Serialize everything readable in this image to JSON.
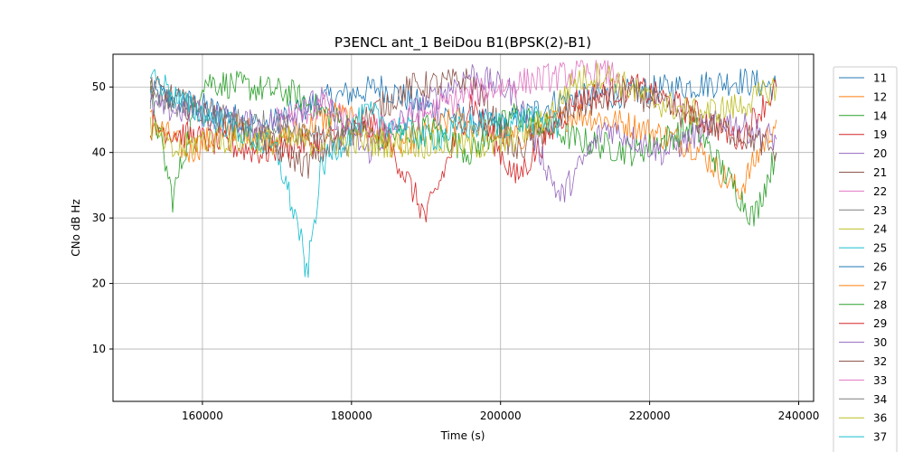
{
  "chart_data": {
    "type": "line",
    "title": "P3ENCL ant_1 BeiDou B1(BPSK(2)-B1)",
    "xlabel": "Time (s)",
    "ylabel": "CNo dB Hz",
    "xlim": [
      148000,
      242000
    ],
    "ylim": [
      2,
      55
    ],
    "xticks": [
      160000,
      180000,
      200000,
      220000,
      240000
    ],
    "xtick_labels": [
      "160000",
      "180000",
      "200000",
      "220000",
      "240000"
    ],
    "yticks": [
      10,
      20,
      30,
      40,
      50
    ],
    "ytick_labels": [
      "10",
      "20",
      "30",
      "40",
      "50"
    ],
    "grid": true,
    "legend_position": "right, outside plot",
    "series": [
      {
        "name": "11",
        "color": "#1f77b4",
        "values": [
          [
            153000,
            49
          ],
          [
            160000,
            47
          ],
          [
            168000,
            44
          ],
          [
            176000,
            48
          ],
          [
            184000,
            50
          ],
          [
            192000,
            46
          ],
          [
            200000,
            44
          ],
          [
            208000,
            48
          ],
          [
            216000,
            49
          ],
          [
            224000,
            50
          ],
          [
            232000,
            51
          ],
          [
            237000,
            50
          ]
        ]
      },
      {
        "name": "12",
        "color": "#ff7f0e",
        "values": [
          [
            153000,
            45
          ],
          [
            158000,
            40
          ],
          [
            164000,
            44
          ],
          [
            170000,
            42
          ],
          [
            178000,
            46
          ],
          [
            186000,
            41
          ],
          [
            194000,
            45
          ],
          [
            202000,
            42
          ],
          [
            210000,
            46
          ],
          [
            218000,
            44
          ],
          [
            226000,
            41
          ],
          [
            232000,
            34
          ],
          [
            237000,
            45
          ]
        ]
      },
      {
        "name": "14",
        "color": "#2ca02c",
        "values": [
          [
            153000,
            49
          ],
          [
            156000,
            33
          ],
          [
            160000,
            51
          ],
          [
            166000,
            50
          ],
          [
            172000,
            49
          ],
          [
            178000,
            45
          ],
          [
            184000,
            42
          ],
          [
            190000,
            44
          ],
          [
            196000,
            40
          ],
          [
            202000,
            46
          ],
          [
            210000,
            42
          ],
          [
            218000,
            40
          ],
          [
            226000,
            44
          ],
          [
            234000,
            30
          ],
          [
            237000,
            40
          ]
        ]
      },
      {
        "name": "19",
        "color": "#d62728",
        "values": [
          [
            153000,
            44
          ],
          [
            160000,
            42
          ],
          [
            168000,
            40
          ],
          [
            176000,
            42
          ],
          [
            184000,
            44
          ],
          [
            190000,
            30
          ],
          [
            196000,
            48
          ],
          [
            202000,
            36
          ],
          [
            210000,
            48
          ],
          [
            218000,
            50
          ],
          [
            226000,
            46
          ],
          [
            232000,
            42
          ],
          [
            237000,
            50
          ]
        ]
      },
      {
        "name": "20",
        "color": "#9467bd",
        "values": [
          [
            153000,
            47
          ],
          [
            160000,
            46
          ],
          [
            168000,
            44
          ],
          [
            176000,
            48
          ],
          [
            182000,
            40
          ],
          [
            188000,
            46
          ],
          [
            196000,
            52
          ],
          [
            202000,
            49
          ],
          [
            208000,
            33
          ],
          [
            214000,
            44
          ],
          [
            222000,
            40
          ],
          [
            230000,
            45
          ],
          [
            237000,
            42
          ]
        ]
      },
      {
        "name": "21",
        "color": "#8c564b",
        "values": [
          [
            153000,
            50
          ],
          [
            160000,
            46
          ],
          [
            168000,
            42
          ],
          [
            174000,
            38
          ],
          [
            180000,
            44
          ],
          [
            188000,
            50
          ],
          [
            196000,
            51
          ],
          [
            202000,
            40
          ],
          [
            210000,
            47
          ],
          [
            218000,
            49
          ],
          [
            226000,
            45
          ],
          [
            234000,
            42
          ],
          [
            237000,
            40
          ]
        ]
      },
      {
        "name": "22",
        "color": "#e377c2",
        "values": [
          [
            170000,
            45
          ],
          [
            176000,
            47
          ],
          [
            182000,
            43
          ],
          [
            188000,
            45
          ],
          [
            196000,
            49
          ],
          [
            204000,
            51
          ],
          [
            210000,
            52
          ],
          [
            216000,
            52
          ]
        ]
      },
      {
        "name": "23",
        "color": "#7f7f7f",
        "values": [
          [
            153000,
            48
          ],
          [
            158000,
            47
          ],
          [
            164000,
            45
          ],
          [
            170000,
            44
          ],
          [
            176000,
            43
          ],
          [
            180000,
            41
          ]
        ]
      },
      {
        "name": "24",
        "color": "#bcbd22",
        "values": [
          [
            153000,
            44
          ],
          [
            156000,
            40
          ],
          [
            160000,
            42
          ],
          [
            200000,
            41
          ],
          [
            206000,
            45
          ],
          [
            210000,
            51
          ],
          [
            214000,
            52
          ],
          [
            220000,
            48
          ],
          [
            226000,
            46
          ],
          [
            232000,
            47
          ],
          [
            237000,
            50
          ]
        ]
      },
      {
        "name": "25",
        "color": "#17becf",
        "values": [
          [
            153000,
            52
          ],
          [
            158000,
            47
          ],
          [
            164000,
            44
          ],
          [
            170000,
            40
          ],
          [
            173000,
            28
          ],
          [
            174000,
            21
          ],
          [
            176000,
            38
          ],
          [
            182000,
            46
          ],
          [
            190000,
            42
          ],
          [
            196000,
            44
          ],
          [
            204000,
            45
          ],
          [
            208000,
            44
          ]
        ]
      }
    ],
    "legend_entries": [
      "11",
      "12",
      "14",
      "19",
      "20",
      "21",
      "22",
      "23",
      "24",
      "25",
      "26",
      "27",
      "28",
      "29",
      "30",
      "32",
      "33",
      "34",
      "36",
      "37"
    ],
    "legend_colors": [
      "#1f77b4",
      "#ff7f0e",
      "#2ca02c",
      "#d62728",
      "#9467bd",
      "#8c564b",
      "#e377c2",
      "#7f7f7f",
      "#bcbd22",
      "#17becf",
      "#1f77b4",
      "#ff7f0e",
      "#2ca02c",
      "#d62728",
      "#9467bd",
      "#8c564b",
      "#e377c2",
      "#7f7f7f",
      "#bcbd22",
      "#17becf"
    ]
  }
}
